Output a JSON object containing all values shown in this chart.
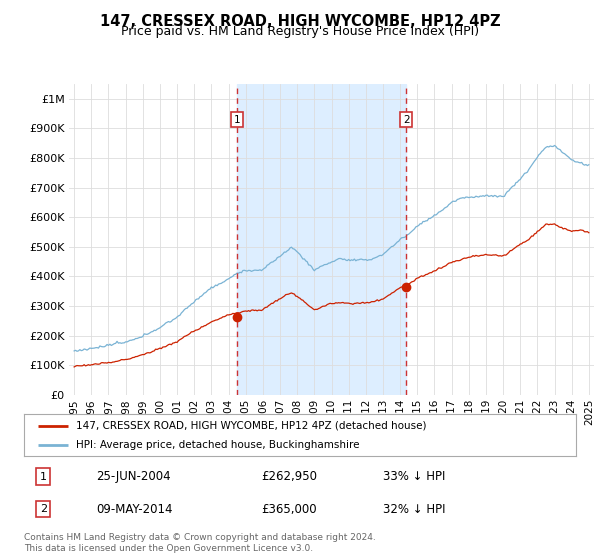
{
  "title": "147, CRESSEX ROAD, HIGH WYCOMBE, HP12 4PZ",
  "subtitle": "Price paid vs. HM Land Registry's House Price Index (HPI)",
  "legend_line1": "147, CRESSEX ROAD, HIGH WYCOMBE, HP12 4PZ (detached house)",
  "legend_line2": "HPI: Average price, detached house, Buckinghamshire",
  "annotation1": {
    "label": "1",
    "date": "25-JUN-2004",
    "price": "£262,950",
    "pct": "33% ↓ HPI",
    "x_year": 2004.48
  },
  "annotation2": {
    "label": "2",
    "date": "09-MAY-2014",
    "price": "£365,000",
    "pct": "32% ↓ HPI",
    "x_year": 2014.36
  },
  "footer1": "Contains HM Land Registry data © Crown copyright and database right 2024.",
  "footer2": "This data is licensed under the Open Government Licence v3.0.",
  "ylim": [
    0,
    1050000
  ],
  "xlim_left": 1994.7,
  "xlim_right": 2025.3,
  "bg_color": "#ffffff",
  "plot_bg_color": "#ffffff",
  "hpi_color": "#7ab3d4",
  "price_color": "#cc2200",
  "vline_color": "#cc3333",
  "shade_color": "#ddeeff",
  "grid_color": "#dddddd",
  "yticks": [
    0,
    100000,
    200000,
    300000,
    400000,
    500000,
    600000,
    700000,
    800000,
    900000,
    1000000
  ],
  "ytick_labels": [
    "£0",
    "£100K",
    "£200K",
    "£300K",
    "£400K",
    "£500K",
    "£600K",
    "£700K",
    "£800K",
    "£900K",
    "£1M"
  ],
  "xticks": [
    1995,
    1996,
    1997,
    1998,
    1999,
    2000,
    2001,
    2002,
    2003,
    2004,
    2005,
    2006,
    2007,
    2008,
    2009,
    2010,
    2011,
    2012,
    2013,
    2014,
    2015,
    2016,
    2017,
    2018,
    2019,
    2020,
    2021,
    2022,
    2023,
    2024,
    2025
  ]
}
